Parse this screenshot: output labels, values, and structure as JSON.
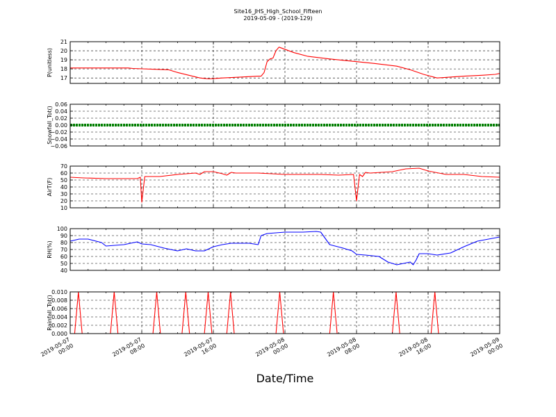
{
  "figure": {
    "title_line1": "Site16_JHS_High_School_Fifteen",
    "title_line2": "2019-05-09 - (2019-129)",
    "xlabel": "Date/Time",
    "x_ticks": [
      {
        "l1": "2019-05-07",
        "l2": "00:00"
      },
      {
        "l1": "2019-05-07",
        "l2": "08:00"
      },
      {
        "l1": "2019-05-07",
        "l2": "16:00"
      },
      {
        "l1": "2019-05-08",
        "l2": "00:00"
      },
      {
        "l1": "2019-05-08",
        "l2": "08:00"
      },
      {
        "l1": "2019-05-08",
        "l2": "16:00"
      },
      {
        "l1": "2019-05-09",
        "l2": "00:00"
      }
    ]
  },
  "chart_data": [
    {
      "type": "line",
      "ylabel": "P(unitless)",
      "ylim": [
        16.4,
        21
      ],
      "yticks": [
        "17",
        "18",
        "19",
        "20",
        "21"
      ],
      "yvals": [
        17,
        18,
        19,
        20,
        21
      ],
      "xlim": [
        "2019-05-07 00:00",
        "2019-05-09 00:00"
      ],
      "grid": true,
      "series": [
        {
          "color": "#ff0000",
          "x": [
            "2019-05-07 00:00",
            "2019-05-07 06:30",
            "2019-05-07 07:00",
            "2019-05-07 11:00",
            "2019-05-07 12:00",
            "2019-05-07 14:30",
            "2019-05-07 15:30",
            "2019-05-07 17:00",
            "2019-05-07 19:00",
            "2019-05-07 21:00",
            "2019-05-07 21:20",
            "2019-05-07 21:40",
            "2019-05-07 22:00",
            "2019-05-07 22:20",
            "2019-05-07 22:40",
            "2019-05-07 23:00",
            "2019-05-07 23:20",
            "2019-05-08 01:00",
            "2019-05-08 02:30",
            "2019-05-08 05:00",
            "2019-05-08 08:00",
            "2019-05-08 10:00",
            "2019-05-08 12:30",
            "2019-05-08 14:00",
            "2019-05-08 15:30",
            "2019-05-08 17:00",
            "2019-05-08 20:00",
            "2019-05-08 22:00",
            "2019-05-08 23:30",
            "2019-05-09 00:00"
          ],
          "y": [
            18.1,
            18.1,
            18.05,
            17.9,
            17.6,
            17.0,
            16.9,
            17.0,
            17.1,
            17.2,
            17.2,
            17.6,
            18.8,
            19.1,
            19.2,
            20.0,
            20.4,
            19.8,
            19.4,
            19.1,
            18.8,
            18.6,
            18.3,
            17.9,
            17.4,
            17.0,
            17.2,
            17.3,
            17.4,
            17.5
          ]
        }
      ]
    },
    {
      "type": "scatter",
      "ylabel": "Snowfall_Tot()",
      "ylim": [
        -0.06,
        0.06
      ],
      "yticks": [
        "−0.06",
        "−0.04",
        "−0.02",
        "0.00",
        "0.02",
        "0.04",
        "0.06"
      ],
      "yvals": [
        -0.06,
        -0.04,
        -0.02,
        0,
        0.02,
        0.04,
        0.06
      ],
      "xlim": [
        "2019-05-07 00:00",
        "2019-05-09 00:00"
      ],
      "grid": true,
      "series": [
        {
          "color": "#008000",
          "x": [
            "2019-05-07 00:00",
            "2019-05-09 00:00"
          ],
          "y": [
            0,
            0
          ],
          "note": "constant 0 at every timestamp"
        }
      ]
    },
    {
      "type": "line",
      "ylabel": "AirT(F)",
      "ylim": [
        10,
        70
      ],
      "yticks": [
        "10",
        "20",
        "30",
        "40",
        "50",
        "60",
        "70"
      ],
      "yvals": [
        10,
        20,
        30,
        40,
        50,
        60,
        70
      ],
      "xlim": [
        "2019-05-07 00:00",
        "2019-05-09 00:00"
      ],
      "grid": true,
      "series": [
        {
          "color": "#ff0000",
          "x": [
            "2019-05-07 00:00",
            "2019-05-07 01:30",
            "2019-05-07 04:00",
            "2019-05-07 06:00",
            "2019-05-07 07:30",
            "2019-05-07 07:50",
            "2019-05-07 08:00",
            "2019-05-07 08:20",
            "2019-05-07 10:00",
            "2019-05-07 12:00",
            "2019-05-07 14:00",
            "2019-05-07 14:30",
            "2019-05-07 15:00",
            "2019-05-07 16:00",
            "2019-05-07 17:00",
            "2019-05-07 17:30",
            "2019-05-07 18:00",
            "2019-05-07 18:30",
            "2019-05-07 21:00",
            "2019-05-08 00:00",
            "2019-05-08 04:00",
            "2019-05-08 06:00",
            "2019-05-08 07:40",
            "2019-05-08 08:00",
            "2019-05-08 08:20",
            "2019-05-08 08:40",
            "2019-05-08 09:00",
            "2019-05-08 09:30",
            "2019-05-08 12:00",
            "2019-05-08 13:30",
            "2019-05-08 15:00",
            "2019-05-08 16:00",
            "2019-05-08 18:00",
            "2019-05-08 20:00",
            "2019-05-08 22:00",
            "2019-05-09 00:00"
          ],
          "y": [
            54,
            53,
            52,
            52,
            52,
            54,
            18,
            55,
            55,
            58,
            60,
            58,
            62,
            62,
            59,
            57,
            61,
            60,
            60,
            58,
            58,
            57,
            58,
            20,
            58,
            55,
            61,
            60,
            62,
            66,
            67,
            63,
            58,
            58,
            55,
            54
          ]
        }
      ]
    },
    {
      "type": "line",
      "ylabel": "RH(%)",
      "ylim": [
        40,
        100
      ],
      "yticks": [
        "40",
        "50",
        "60",
        "70",
        "80",
        "90",
        "100"
      ],
      "yvals": [
        40,
        50,
        60,
        70,
        80,
        90,
        100
      ],
      "xlim": [
        "2019-05-07 00:00",
        "2019-05-09 00:00"
      ],
      "grid": true,
      "series": [
        {
          "color": "#0000ff",
          "x": [
            "2019-05-07 00:00",
            "2019-05-07 01:00",
            "2019-05-07 02:00",
            "2019-05-07 03:30",
            "2019-05-07 04:00",
            "2019-05-07 06:00",
            "2019-05-07 07:30",
            "2019-05-07 08:00",
            "2019-05-07 09:00",
            "2019-05-07 10:30",
            "2019-05-07 12:00",
            "2019-05-07 13:00",
            "2019-05-07 14:00",
            "2019-05-07 15:00",
            "2019-05-07 16:00",
            "2019-05-07 17:00",
            "2019-05-07 18:00",
            "2019-05-07 20:00",
            "2019-05-07 21:00",
            "2019-05-07 21:20",
            "2019-05-07 22:00",
            "2019-05-08 00:00",
            "2019-05-08 02:00",
            "2019-05-08 03:30",
            "2019-05-08 04:00",
            "2019-05-08 05:00",
            "2019-05-08 06:30",
            "2019-05-08 07:30",
            "2019-05-08 08:00",
            "2019-05-08 09:00",
            "2019-05-08 10:30",
            "2019-05-08 11:30",
            "2019-05-08 12:30",
            "2019-05-08 14:00",
            "2019-05-08 14:20",
            "2019-05-08 14:40",
            "2019-05-08 15:00",
            "2019-05-08 16:00",
            "2019-05-08 17:00",
            "2019-05-08 18:30",
            "2019-05-08 20:00",
            "2019-05-08 21:30",
            "2019-05-09 00:00"
          ],
          "y": [
            82,
            85,
            85,
            80,
            75,
            77,
            81,
            78,
            77,
            72,
            68,
            71,
            68,
            68,
            74,
            77,
            79,
            79,
            77,
            90,
            93,
            95,
            95,
            96,
            95,
            77,
            72,
            68,
            63,
            62,
            60,
            52,
            48,
            52,
            48,
            55,
            64,
            64,
            62,
            65,
            74,
            82,
            88
          ]
        }
      ]
    },
    {
      "type": "line",
      "ylabel": "Rainfall_Tot()",
      "ylim": [
        0,
        0.01
      ],
      "yticks": [
        "0.000",
        "0.002",
        "0.004",
        "0.006",
        "0.008",
        "0.010"
      ],
      "yvals": [
        0,
        0.002,
        0.004,
        0.006,
        0.008,
        0.01
      ],
      "xlim": [
        "2019-05-07 00:00",
        "2019-05-09 00:00"
      ],
      "grid": true,
      "series": [
        {
          "color": "#ff0000",
          "x": [
            "2019-05-07 00:00",
            "2019-05-07 00:30",
            "2019-05-07 00:55",
            "2019-05-07 01:20",
            "2019-05-07 04:30",
            "2019-05-07 04:55",
            "2019-05-07 05:20",
            "2019-05-07 09:15",
            "2019-05-07 09:40",
            "2019-05-07 10:05",
            "2019-05-07 12:30",
            "2019-05-07 12:55",
            "2019-05-07 13:20",
            "2019-05-07 15:00",
            "2019-05-07 15:25",
            "2019-05-07 15:50",
            "2019-05-07 17:30",
            "2019-05-07 17:55",
            "2019-05-07 18:20",
            "2019-05-07 23:00",
            "2019-05-07 23:25",
            "2019-05-07 23:50",
            "2019-05-08 05:00",
            "2019-05-08 05:25",
            "2019-05-08 05:50",
            "2019-05-08 12:00",
            "2019-05-08 12:25",
            "2019-05-08 12:50",
            "2019-05-08 16:20",
            "2019-05-08 16:45",
            "2019-05-08 17:10",
            "2019-05-09 00:00"
          ],
          "y": [
            0,
            0,
            0.01,
            0,
            0,
            0.01,
            0,
            0,
            0.01,
            0,
            0,
            0.01,
            0,
            0,
            0.01,
            0,
            0,
            0.01,
            0,
            0,
            0.01,
            0,
            0,
            0.01,
            0,
            0,
            0.01,
            0,
            0,
            0.01,
            0,
            0
          ]
        }
      ]
    }
  ]
}
